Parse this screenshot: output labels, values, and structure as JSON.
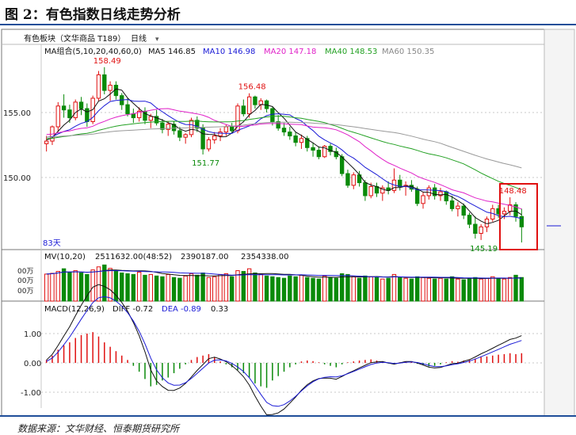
{
  "figure": {
    "title": "图 2：有色指数日线走势分析",
    "source": "数据来源：文华财经、恒泰期货研究所"
  },
  "header": {
    "instrument": "有色板块（文华商品 T189）",
    "period": "日线"
  },
  "price_panel": {
    "legend_group": "MA组合(5,10,20,40,60,0)",
    "ma_labels": [
      {
        "text": "MA5 146.85",
        "color": "#111111"
      },
      {
        "text": "MA10 146.98",
        "color": "#1a1ad6"
      },
      {
        "text": "MA20 147.18",
        "color": "#e020c8"
      },
      {
        "text": "MA40 148.53",
        "color": "#22a022"
      },
      {
        "text": "MA60 150.35",
        "color": "#999999"
      }
    ],
    "y_ticks": [
      "155.00",
      "150.00"
    ],
    "annotations": [
      "158.49",
      "156.48",
      "151.77",
      "145.19",
      "148.48",
      "83天"
    ]
  },
  "volume_panel": {
    "legend": [
      "MV(10,20)",
      "2511632.00(48:52)",
      "2390187.00",
      "2354338.00"
    ],
    "y_ticks": [
      "00万",
      "00万",
      "00万"
    ]
  },
  "macd_panel": {
    "legend": [
      "MACD(12,26,9)",
      "DIFF -0.72",
      "DEA -0.89",
      "0.33"
    ],
    "y_ticks": [
      "1.00",
      "0.00",
      "-1.00"
    ]
  },
  "colors": {
    "up": "#e01010",
    "down": "#0a8a0a",
    "grid": "#c8c8c8",
    "highlight": "#e01010"
  },
  "chart_data": {
    "type": "candlestick",
    "title": "有色指数日线",
    "ma_series": [
      "MA5",
      "MA10",
      "MA20",
      "MA40",
      "MA60"
    ],
    "candles_ohlc": [
      [
        152.6,
        153.2,
        152.0,
        152.8
      ],
      [
        152.8,
        154.0,
        152.5,
        153.9
      ],
      [
        153.9,
        155.8,
        153.5,
        155.5
      ],
      [
        155.5,
        156.4,
        154.6,
        155.2
      ],
      [
        155.2,
        155.6,
        154.2,
        154.6
      ],
      [
        154.6,
        156.0,
        154.4,
        155.8
      ],
      [
        155.8,
        156.2,
        154.8,
        155.3
      ],
      [
        155.3,
        155.7,
        153.9,
        154.3
      ],
      [
        154.3,
        156.3,
        154.1,
        156.1
      ],
      [
        156.1,
        158.2,
        155.9,
        157.9
      ],
      [
        157.9,
        158.49,
        156.4,
        156.7
      ],
      [
        156.7,
        157.4,
        155.9,
        157.1
      ],
      [
        157.1,
        157.4,
        156.0,
        156.3
      ],
      [
        156.3,
        156.5,
        155.2,
        155.6
      ],
      [
        155.6,
        156.1,
        154.7,
        154.9
      ],
      [
        154.9,
        155.3,
        154.2,
        154.6
      ],
      [
        154.6,
        155.4,
        154.3,
        155.1
      ],
      [
        155.1,
        155.4,
        154.1,
        154.4
      ],
      [
        154.4,
        154.9,
        153.8,
        154.7
      ],
      [
        154.7,
        155.2,
        154.0,
        154.2
      ],
      [
        154.2,
        154.5,
        153.4,
        153.7
      ],
      [
        153.7,
        154.3,
        153.2,
        154.1
      ],
      [
        154.1,
        154.3,
        153.3,
        153.6
      ],
      [
        153.6,
        153.9,
        152.8,
        153.1
      ],
      [
        153.1,
        153.4,
        152.6,
        153.3
      ],
      [
        153.3,
        154.6,
        153.1,
        154.4
      ],
      [
        154.4,
        154.7,
        153.5,
        153.8
      ],
      [
        153.8,
        154.1,
        151.77,
        152.2
      ],
      [
        152.2,
        153.1,
        152.0,
        152.9
      ],
      [
        152.9,
        153.5,
        152.6,
        153.2
      ],
      [
        153.2,
        153.8,
        152.8,
        153.5
      ],
      [
        153.5,
        154.1,
        153.2,
        153.9
      ],
      [
        153.9,
        154.2,
        153.4,
        153.6
      ],
      [
        153.6,
        155.7,
        153.4,
        155.5
      ],
      [
        155.5,
        156.0,
        154.7,
        154.9
      ],
      [
        154.9,
        156.48,
        154.6,
        156.2
      ],
      [
        156.2,
        156.3,
        155.3,
        155.6
      ],
      [
        155.6,
        156.1,
        155.2,
        155.9
      ],
      [
        155.9,
        156.0,
        155.0,
        155.3
      ],
      [
        155.3,
        155.4,
        154.0,
        154.3
      ],
      [
        154.3,
        154.8,
        153.6,
        153.8
      ],
      [
        153.8,
        154.2,
        153.2,
        153.5
      ],
      [
        153.5,
        153.9,
        152.9,
        153.2
      ],
      [
        153.2,
        153.5,
        152.4,
        152.7
      ],
      [
        152.7,
        153.3,
        152.2,
        153.0
      ],
      [
        153.0,
        153.2,
        152.0,
        152.3
      ],
      [
        152.3,
        152.7,
        151.6,
        152.1
      ],
      [
        152.1,
        152.4,
        151.4,
        151.6
      ],
      [
        151.6,
        152.5,
        151.5,
        152.4
      ],
      [
        152.4,
        152.6,
        151.7,
        152.0
      ],
      [
        152.0,
        152.3,
        151.4,
        151.6
      ],
      [
        151.6,
        151.8,
        150.1,
        150.3
      ],
      [
        150.3,
        150.6,
        149.2,
        149.4
      ],
      [
        149.4,
        150.4,
        149.1,
        150.2
      ],
      [
        150.2,
        150.5,
        149.3,
        149.6
      ],
      [
        149.6,
        149.8,
        148.2,
        148.6
      ],
      [
        148.6,
        149.6,
        148.4,
        149.3
      ],
      [
        149.3,
        149.6,
        148.5,
        148.8
      ],
      [
        148.8,
        149.4,
        148.2,
        149.2
      ],
      [
        149.2,
        149.7,
        148.7,
        149.0
      ],
      [
        149.0,
        150.7,
        148.8,
        149.8
      ],
      [
        149.8,
        150.2,
        149.0,
        149.3
      ],
      [
        149.3,
        149.7,
        148.6,
        149.4
      ],
      [
        149.4,
        149.8,
        148.9,
        149.1
      ],
      [
        149.1,
        149.3,
        147.8,
        148.0
      ],
      [
        148.0,
        148.9,
        147.6,
        148.6
      ],
      [
        148.6,
        149.4,
        148.3,
        149.2
      ],
      [
        149.2,
        149.5,
        148.3,
        148.6
      ],
      [
        148.6,
        149.2,
        148.2,
        148.9
      ],
      [
        148.9,
        149.0,
        147.9,
        148.2
      ],
      [
        148.2,
        148.6,
        147.4,
        147.6
      ],
      [
        147.6,
        148.1,
        147.0,
        147.8
      ],
      [
        147.8,
        148.0,
        146.8,
        147.1
      ],
      [
        147.1,
        147.3,
        146.1,
        146.4
      ],
      [
        146.4,
        147.0,
        145.3,
        145.7
      ],
      [
        145.7,
        146.4,
        145.19,
        146.2
      ],
      [
        146.2,
        147.0,
        145.8,
        146.8
      ],
      [
        146.8,
        147.9,
        146.6,
        147.6
      ],
      [
        147.6,
        147.9,
        146.9,
        147.2
      ],
      [
        147.2,
        147.7,
        146.8,
        147.4
      ],
      [
        147.4,
        148.48,
        147.1,
        147.9
      ],
      [
        147.9,
        148.1,
        146.6,
        147.0
      ],
      [
        147.0,
        147.6,
        145.0,
        146.2
      ]
    ],
    "volume_values": [
      71,
      73,
      78,
      85,
      76,
      80,
      74,
      70,
      82,
      90,
      95,
      86,
      80,
      74,
      72,
      70,
      76,
      68,
      70,
      66,
      64,
      70,
      62,
      60,
      66,
      72,
      68,
      74,
      62,
      64,
      70,
      72,
      64,
      80,
      78,
      85,
      74,
      70,
      66,
      64,
      62,
      60,
      66,
      64,
      68,
      62,
      60,
      58,
      66,
      62,
      60,
      72,
      70,
      64,
      60,
      66,
      64,
      62,
      58,
      60,
      70,
      62,
      60,
      58,
      64,
      62,
      60,
      58,
      60,
      58,
      64,
      58,
      56,
      60,
      62,
      58,
      60,
      64,
      60,
      58,
      62,
      68,
      62
    ],
    "macd_hist": [
      0.1,
      0.25,
      0.45,
      0.6,
      0.7,
      0.85,
      0.95,
      1.0,
      1.05,
      0.9,
      0.7,
      0.55,
      0.4,
      0.25,
      0.1,
      -0.1,
      -0.3,
      -0.55,
      -0.8,
      -0.75,
      -0.6,
      -0.5,
      -0.35,
      -0.2,
      -0.05,
      0.1,
      0.2,
      0.25,
      0.3,
      0.2,
      0.05,
      -0.05,
      -0.15,
      -0.25,
      -0.35,
      -0.5,
      -0.7,
      -0.8,
      -0.85,
      -0.6,
      -0.45,
      -0.3,
      -0.15,
      -0.05,
      0.05,
      0.08,
      0.06,
      0.02,
      -0.05,
      -0.1,
      -0.15,
      -0.05,
      0.02,
      0.05,
      0.08,
      0.1,
      0.12,
      0.08,
      0.05,
      -0.02,
      -0.05,
      0.02,
      0.05,
      0.03,
      -0.03,
      -0.08,
      -0.12,
      -0.1,
      -0.05,
      0.02,
      0.06,
      0.04,
      0.08,
      0.1,
      0.15,
      0.2,
      0.22,
      0.25,
      0.28,
      0.3,
      0.33,
      0.3,
      0.33
    ],
    "y_range_price": [
      144.5,
      159.5
    ],
    "y_range_macd": [
      -1.6,
      1.6
    ]
  }
}
